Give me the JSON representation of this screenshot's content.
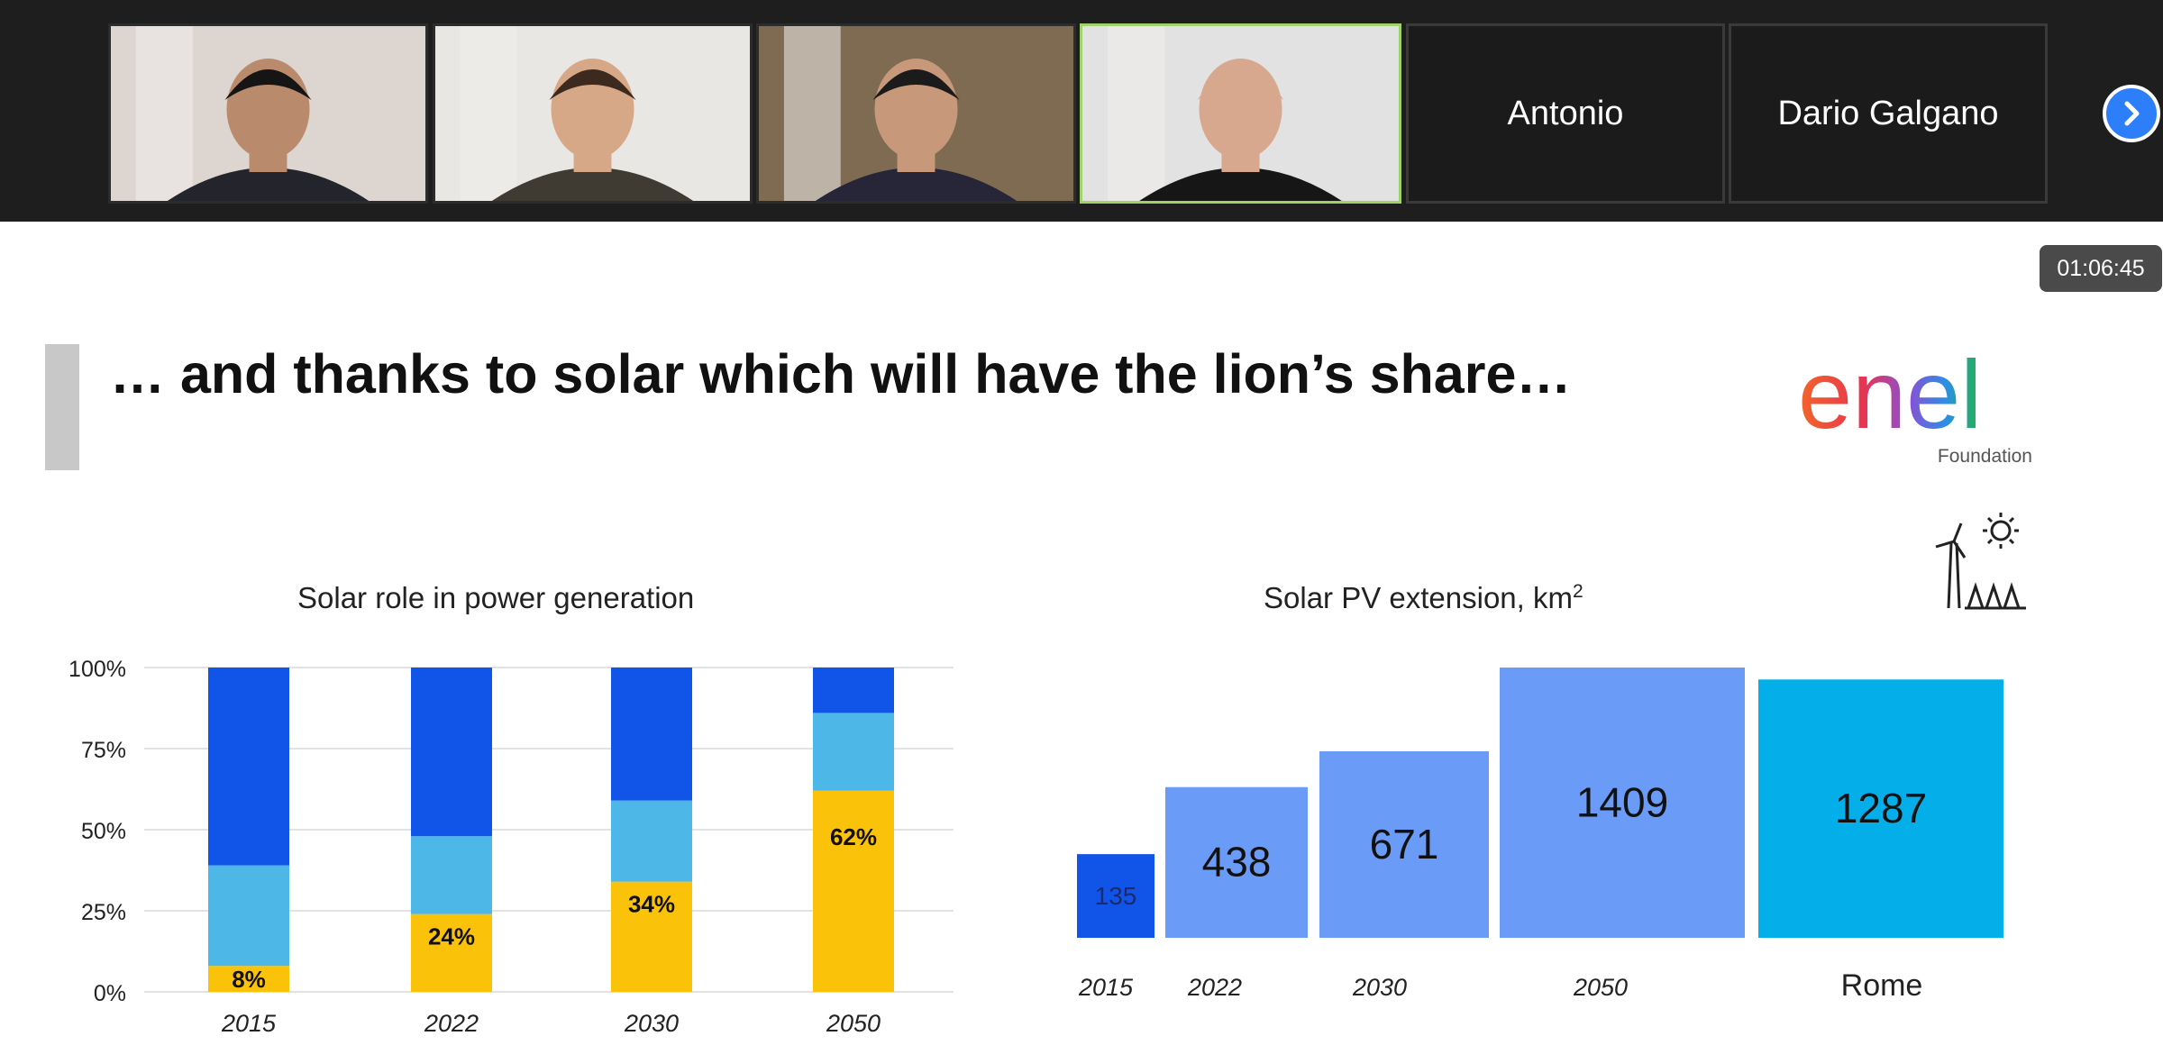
{
  "meeting": {
    "participants": [
      {
        "kind": "video",
        "name": ""
      },
      {
        "kind": "video",
        "name": ""
      },
      {
        "kind": "video",
        "name": ""
      },
      {
        "kind": "video",
        "name": "",
        "active": true
      },
      {
        "kind": "name",
        "name": "Antonio"
      },
      {
        "kind": "name",
        "name": "Dario Galgano"
      }
    ],
    "elapsed_time": "01:06:45",
    "next_icon": "chevron-right-icon"
  },
  "slide": {
    "title": "… and thanks to solar which will have the lion’s share…",
    "logo_text": "enel",
    "logo_subtext": "Foundation",
    "icons": [
      "sun-icon",
      "wind-turbine-icon",
      "solar-panels-icon"
    ],
    "colors": {
      "dark_blue": "#1155e8",
      "light_blue": "#4db8e8",
      "yellow": "#fbc20a",
      "pv_2015": "#1155e8",
      "pv_other": "#6a9bf6",
      "rome": "#03aee9"
    }
  },
  "chart_data": [
    {
      "type": "bar",
      "title": "Solar role in power generation",
      "categories": [
        "2015",
        "2022",
        "2030",
        "2050"
      ],
      "yticks": [
        "0%",
        "25%",
        "50%",
        "75%",
        "100%"
      ],
      "ylim": [
        0,
        100
      ],
      "grid": true,
      "series": [
        {
          "values": [
            8,
            24,
            34,
            62
          ],
          "labels": [
            "8%",
            "24%",
            "34%",
            "62%"
          ]
        },
        {
          "values": [
            31,
            24,
            25,
            24
          ]
        },
        {
          "values": [
            61,
            52,
            41,
            14
          ]
        }
      ]
    },
    {
      "type": "bar",
      "title": "Solar PV extension, km",
      "title_superscript": "2",
      "categories": [
        "2015",
        "2022",
        "2030",
        "2050",
        "Rome"
      ],
      "values": [
        135,
        438,
        671,
        1409,
        1287
      ],
      "ylim": [
        0,
        1409
      ]
    }
  ]
}
